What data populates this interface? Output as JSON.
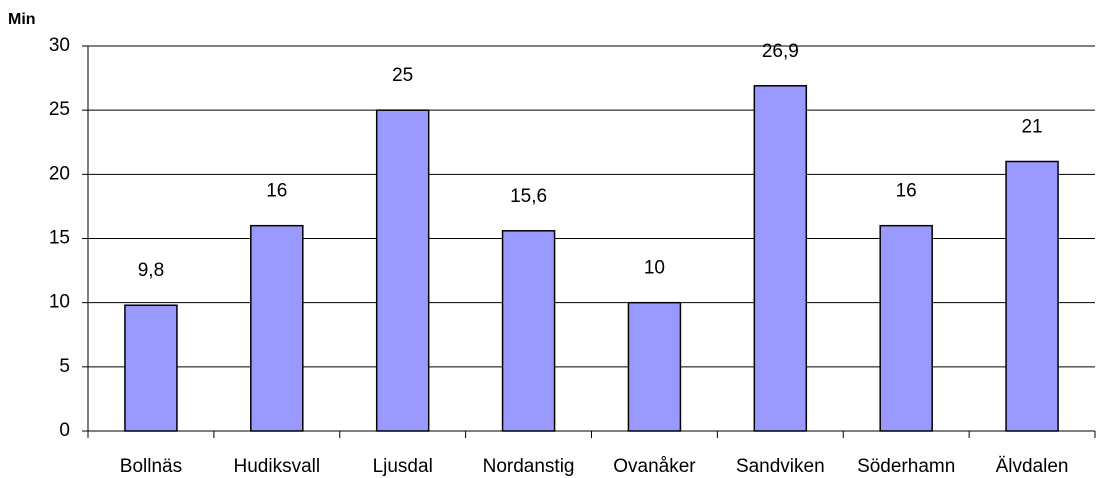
{
  "chart_data": {
    "type": "bar",
    "y_label": "Min",
    "categories": [
      "Bollnäs",
      "Hudiksvall",
      "Ljusdal",
      "Nordanstig",
      "Ovanåker",
      "Sandviken",
      "Söderhamn",
      "Älvdalen"
    ],
    "values": [
      9.8,
      16,
      25,
      15.6,
      10,
      26.9,
      16,
      21
    ],
    "value_labels": [
      "9,8",
      "16",
      "25",
      "15,6",
      "10",
      "26,9",
      "16",
      "21"
    ],
    "color": "#9999ff",
    "ylim": [
      0,
      30
    ],
    "yticks": [
      0,
      5,
      10,
      15,
      20,
      25,
      30
    ],
    "grid": true
  }
}
